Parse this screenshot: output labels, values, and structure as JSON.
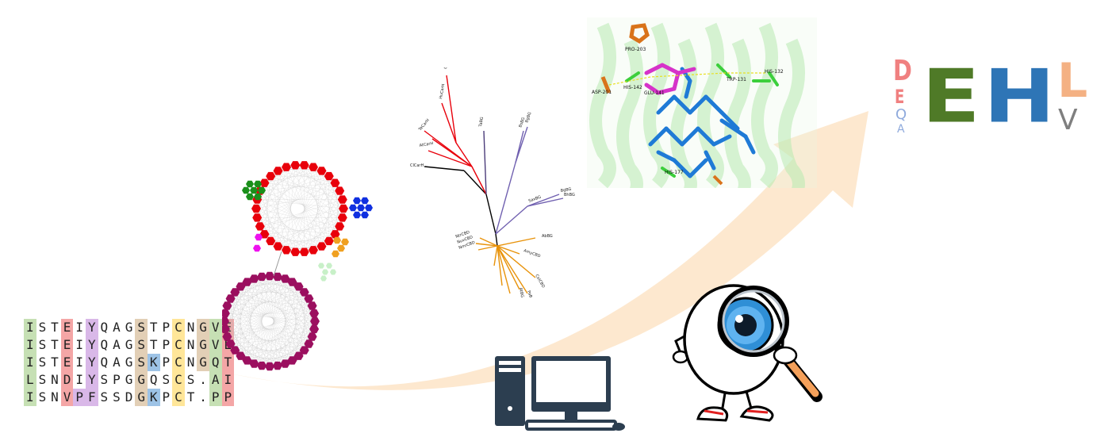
{
  "alignment": {
    "rows": [
      [
        "I",
        "S",
        "T",
        "E",
        "I",
        "Y",
        "Q",
        "A",
        "G",
        "S",
        "T",
        "P",
        "C",
        "N",
        "G",
        "V",
        "E"
      ],
      [
        "I",
        "S",
        "T",
        "E",
        "I",
        "Y",
        "Q",
        "A",
        "G",
        "S",
        "T",
        "P",
        "C",
        "N",
        "G",
        "V",
        "E"
      ],
      [
        "I",
        "S",
        "T",
        "E",
        "I",
        "Y",
        "Q",
        "A",
        "G",
        "S",
        "K",
        "P",
        "C",
        "N",
        "G",
        "Q",
        "T"
      ],
      [
        "L",
        "S",
        "N",
        "D",
        "I",
        "Y",
        "S",
        "P",
        "G",
        "G",
        "Q",
        "S",
        "C",
        "S",
        ".",
        "A",
        "I"
      ],
      [
        "I",
        "S",
        "N",
        "V",
        "P",
        "F",
        "S",
        "S",
        "D",
        "G",
        "K",
        "P",
        "C",
        "T",
        ".",
        "P",
        "P"
      ]
    ]
  },
  "structure_labels": {
    "pro": "PRO-203",
    "asp": "ASP-201",
    "his142": "HIS-142",
    "glu": "GLU-141",
    "trp": "TRP-131",
    "his132": "HIS-132",
    "his177": "HIS-177"
  },
  "tree_labels": [
    "ObCarH",
    "HuCarH",
    "TeCarH",
    "AtCarH",
    "ClCarH",
    "TaBG",
    "BsBG",
    "BgBG",
    "SaxBG",
    "BgBG",
    "BhBG",
    "AbBG",
    "AmyCBD",
    "CelCBD",
    "AtBGC",
    "PaBGC",
    "NtrCBD",
    "NuvCBD",
    "NmrCBD"
  ],
  "logo": {
    "pos1": [
      "D",
      "E",
      "Q",
      "A"
    ],
    "pos2": [
      "E"
    ],
    "pos3": [
      "H"
    ],
    "pos4": [
      "L",
      "V"
    ]
  },
  "colors": {
    "arrow": "#fde8cf",
    "network_red": "#e8000b",
    "network_maroon": "#9b0f5f",
    "network_green": "#1a8f1a",
    "network_blue": "#1030e0",
    "network_magenta": "#ee11ee",
    "network_orange": "#f0a020",
    "logo_E": "#4f7a27",
    "logo_H": "#2e75b6",
    "logo_D": "#f08080",
    "logo_L": "#f4b183",
    "logo_V": "#7f7f7f",
    "logo_QA": "#8faadc",
    "computer": "#2c3e50",
    "eye_iris": "#2f8fd6"
  },
  "icons": [
    "sequence-alignment",
    "protein-network",
    "phylogenetic-tree",
    "protein-structure",
    "sequence-logo",
    "computer-icon",
    "eyeball-magnifier-icon"
  ]
}
